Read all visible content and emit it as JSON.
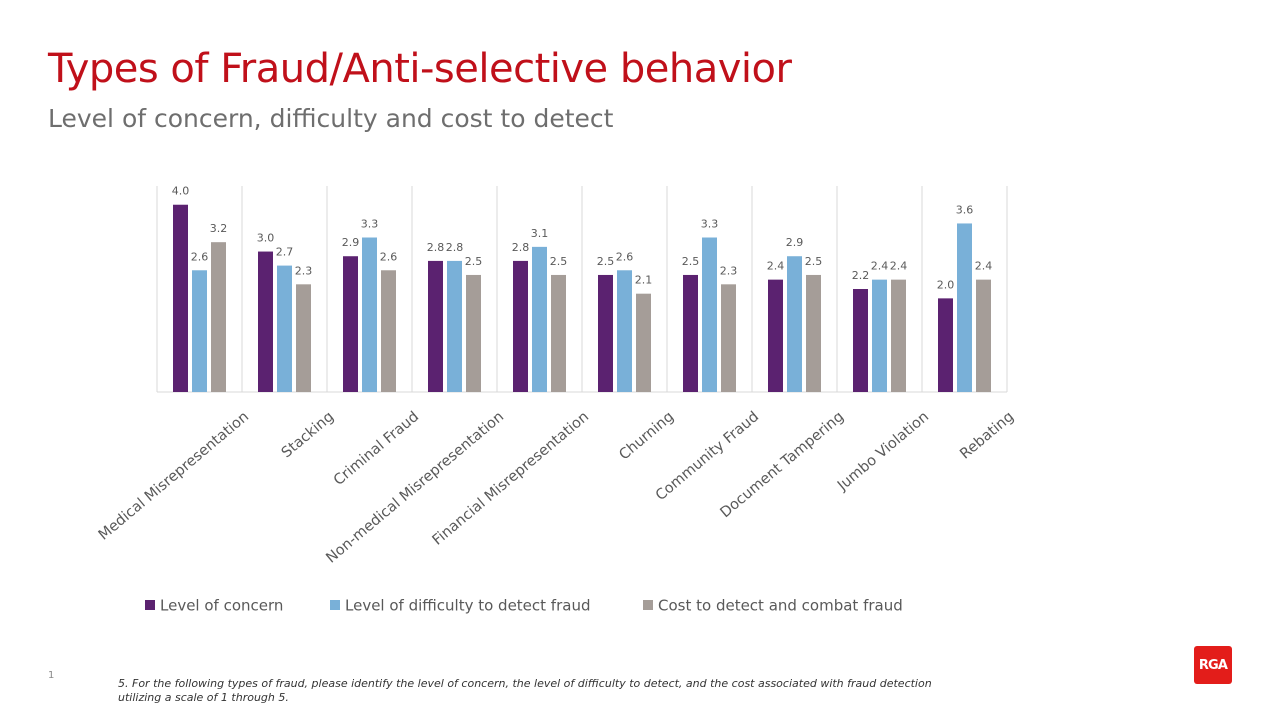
{
  "slide": {
    "title": "Types of Fraud/Anti-selective behavior",
    "subtitle": "Level of concern, difficulty and cost to detect",
    "page_number": "1",
    "footnote": "5. For the following types of fraud, please identify the level of concern, the level of difficulty to detect, and the cost associated with fraud detection utilizing a scale of 1 through 5.",
    "logo_text": "RGA"
  },
  "colors": {
    "title": "#c0101a",
    "level_of_concern": "#5b2270",
    "level_of_difficulty": "#79b0d8",
    "cost": "#a59d98",
    "logo": "#e31d1a"
  },
  "chart_data": {
    "type": "bar",
    "categories": [
      "Medical Misrepresentation",
      "Stacking",
      "Criminal Fraud",
      "Non-medical Misrepresentation",
      "Financial Misrepresentation",
      "Churning",
      "Community Fraud",
      "Document Tampering",
      "Jumbo Violation",
      "Rebating"
    ],
    "series": [
      {
        "name": "Level of concern",
        "color": "#5b2270",
        "values": [
          4.0,
          3.0,
          2.9,
          2.8,
          2.8,
          2.5,
          2.5,
          2.4,
          2.2,
          2.0
        ],
        "labels": [
          "4.0",
          "3.0",
          "2.9",
          "2.8",
          "2.8",
          "2.5",
          "2.5",
          "2.4",
          "2.2",
          "2.0"
        ]
      },
      {
        "name": "Level of difficulty to detect fraud",
        "color": "#79b0d8",
        "values": [
          2.6,
          2.7,
          3.3,
          2.8,
          3.1,
          2.6,
          3.3,
          2.9,
          2.4,
          3.6
        ],
        "labels": [
          "2.6",
          "2.7",
          "3.3",
          "2.8",
          "3.1",
          "2.6",
          "3.3",
          "2.9",
          "2.4",
          "3.6"
        ]
      },
      {
        "name": "Cost to detect and combat fraud",
        "color": "#a59d98",
        "values": [
          3.2,
          2.3,
          2.6,
          2.5,
          2.5,
          2.1,
          2.3,
          2.5,
          2.4,
          2.4
        ],
        "labels": [
          "3.2",
          "2.3",
          "2.6",
          "2.5",
          "2.5",
          "2.1",
          "2.3",
          "2.5",
          "2.4",
          "2.4"
        ]
      }
    ],
    "ylim": [
      0,
      4.4
    ],
    "grid": false,
    "legend_position": "bottom"
  }
}
